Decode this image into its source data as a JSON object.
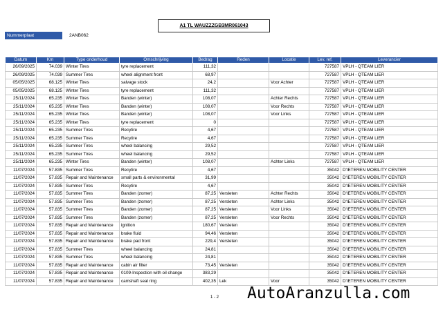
{
  "header": {
    "title": "A1 TL WAUZZZGB3MR061043",
    "plate_label": "Nummerplaat",
    "plate": "2ANB062"
  },
  "table": {
    "columns": [
      "Datum",
      "Km",
      "Type onderhoud",
      "Omschrijving",
      "Bedrag",
      "Reden",
      "Locatie",
      "Lev. ref.",
      "Leverancier"
    ],
    "rows": [
      [
        "26/09/2025",
        "74.039",
        "Winter Tires",
        "tyre replacement",
        "111,32",
        null,
        null,
        "727587",
        "VPLH - QTEAM LIER"
      ],
      [
        "26/09/2025",
        "74.039",
        "Summer Tires",
        "wheel alignment front",
        "68,97",
        null,
        null,
        "727587",
        "VPLH - QTEAM LIER"
      ],
      [
        "05/05/2025",
        "68.125",
        "Winter Tires",
        "salvage stock",
        "24,2",
        null,
        "Voor Achter",
        "727587",
        "VPLH - QTEAM LIER"
      ],
      [
        "05/05/2025",
        "68.125",
        "Winter Tires",
        "tyre replacement",
        "111,32",
        null,
        null,
        "727587",
        "VPLH - QTEAM LIER"
      ],
      [
        "25/11/2024",
        "65.235",
        "Winter Tires",
        "Banden (winter)",
        "108,07",
        null,
        "Achter Rechts",
        "727587",
        "VPLH - QTEAM LIER"
      ],
      [
        "25/11/2024",
        "65.235",
        "Winter Tires",
        "Banden (winter)",
        "108,07",
        null,
        "Voor Rechts",
        "727587",
        "VPLH - QTEAM LIER"
      ],
      [
        "25/11/2024",
        "65.235",
        "Winter Tires",
        "Banden (winter)",
        "108,07",
        null,
        "Voor Links",
        "727587",
        "VPLH - QTEAM LIER"
      ],
      [
        "25/11/2024",
        "65.235",
        "Winter Tires",
        "tyre replacement",
        "0",
        null,
        null,
        "727587",
        "VPLH - QTEAM LIER"
      ],
      [
        "25/11/2024",
        "65.235",
        "Summer Tires",
        "Recytire",
        "4,67",
        null,
        null,
        "727587",
        "VPLH - QTEAM LIER"
      ],
      [
        "25/11/2024",
        "65.235",
        "Summer Tires",
        "Recytire",
        "4,67",
        null,
        null,
        "727587",
        "VPLH - QTEAM LIER"
      ],
      [
        "25/11/2024",
        "65.235",
        "Summer Tires",
        "wheel balancing",
        "29,52",
        null,
        null,
        "727587",
        "VPLH - QTEAM LIER"
      ],
      [
        "25/11/2024",
        "65.235",
        "Summer Tires",
        "wheel balancing",
        "29,52",
        null,
        null,
        "727587",
        "VPLH - QTEAM LIER"
      ],
      [
        "25/11/2024",
        "65.235",
        "Winter Tires",
        "Banden (winter)",
        "108,07",
        null,
        "Achter Links",
        "727587",
        "VPLH - QTEAM LIER"
      ],
      [
        "11/07/2024",
        "57.835",
        "Summer Tires",
        "Recytire",
        "4,67",
        null,
        null,
        "35042",
        "D'IETEREN MOBILITY CENTER"
      ],
      [
        "11/07/2024",
        "57.835",
        "Repair and Maintenance",
        "small parts & environmental",
        "31,99",
        null,
        null,
        "35042",
        "D'IETEREN MOBILITY CENTER"
      ],
      [
        "11/07/2024",
        "57.835",
        "Summer Tires",
        "Recytire",
        "4,67",
        null,
        null,
        "35042",
        "D'IETEREN MOBILITY CENTER"
      ],
      [
        "11/07/2024",
        "57.835",
        "Summer Tires",
        "Banden (zomer)",
        "87,25",
        "Versleten",
        "Achter Rechts",
        "35042",
        "D'IETEREN MOBILITY CENTER"
      ],
      [
        "11/07/2024",
        "57.835",
        "Summer Tires",
        "Banden (zomer)",
        "87,25",
        "Versleten",
        "Achter Links",
        "35042",
        "D'IETEREN MOBILITY CENTER"
      ],
      [
        "11/07/2024",
        "57.835",
        "Summer Tires",
        "Banden (zomer)",
        "87,25",
        "Versleten",
        "Voor Links",
        "35042",
        "D'IETEREN MOBILITY CENTER"
      ],
      [
        "11/07/2024",
        "57.835",
        "Summer Tires",
        "Banden (zomer)",
        "87,25",
        "Versleten",
        "Voor Rechts",
        "35042",
        "D'IETEREN MOBILITY CENTER"
      ],
      [
        "11/07/2024",
        "57.835",
        "Repair and Maintenance",
        "ignition",
        "180,67",
        "Versleten",
        null,
        "35042",
        "D'IETEREN MOBILITY CENTER"
      ],
      [
        "11/07/2024",
        "57.835",
        "Repair and Maintenance",
        "brake fluid",
        "94,46",
        "Versleten",
        null,
        "35042",
        "D'IETEREN MOBILITY CENTER"
      ],
      [
        "11/07/2024",
        "57.835",
        "Repair and Maintenance",
        "brake pad front",
        "229,4",
        "Versleten",
        null,
        "35042",
        "D'IETEREN MOBILITY CENTER"
      ],
      [
        "11/07/2024",
        "57.835",
        "Summer Tires",
        "wheel balancing",
        "24,81",
        null,
        null,
        "35042",
        "D'IETEREN MOBILITY CENTER"
      ],
      [
        "11/07/2024",
        "57.835",
        "Summer Tires",
        "wheel balancing",
        "24,81",
        null,
        null,
        "35042",
        "D'IETEREN MOBILITY CENTER"
      ],
      [
        "11/07/2024",
        "57.835",
        "Repair and Maintenance",
        "cabin air filter",
        "73,45",
        "Versleten",
        null,
        "35042",
        "D'IETEREN MOBILITY CENTER"
      ],
      [
        "11/07/2024",
        "57.835",
        "Repair and Maintenance",
        "0109-Inspection with oil change",
        "383,29",
        null,
        null,
        "35042",
        "D'IETEREN MOBILITY CENTER"
      ],
      [
        "11/07/2024",
        "57.835",
        "Repair and Maintenance",
        "camshaft seal ring",
        "402,35",
        "Lek",
        "Voor",
        "35042",
        "D'IETEREN MOBILITY CENTER"
      ]
    ]
  },
  "footer": {
    "page": "1 - 2"
  },
  "watermark": "AutoAranzulla.com"
}
